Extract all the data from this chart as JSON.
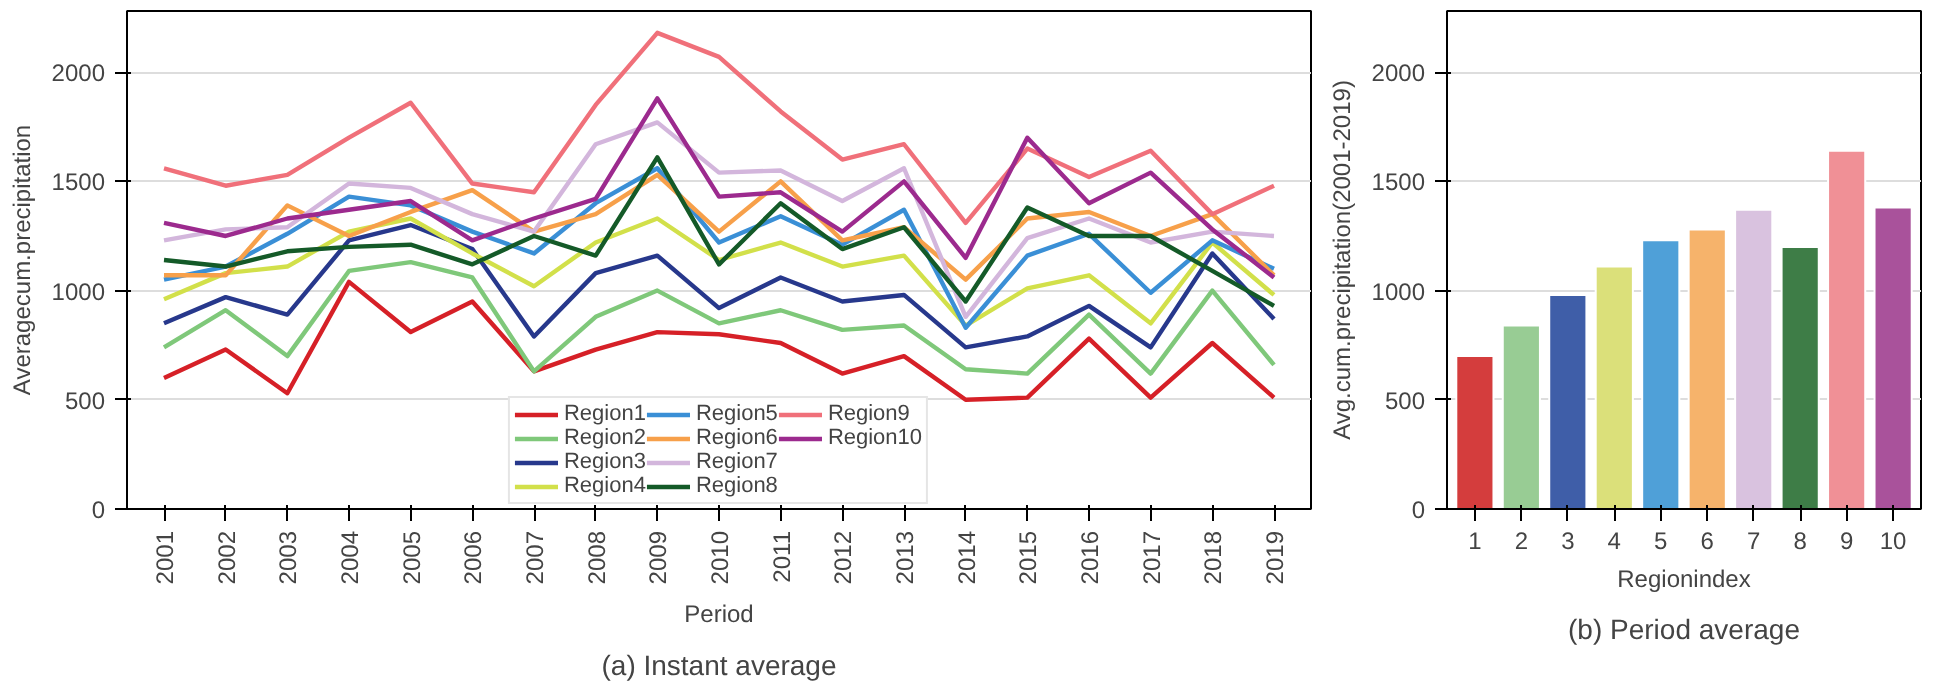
{
  "chart_data": [
    {
      "type": "line",
      "xlabel": "Period",
      "ylabel": "Averagecum.precipitation",
      "annotations": [
        "(a) Instant average"
      ],
      "categories": [
        "2001",
        "2002",
        "2003",
        "2004",
        "2005",
        "2006",
        "2007",
        "2008",
        "2009",
        "2010",
        "2011",
        "2012",
        "2013",
        "2014",
        "2015",
        "2016",
        "2017",
        "2018",
        "2019"
      ],
      "ylim": [
        0,
        2280
      ],
      "yticks": [
        0,
        500,
        1000,
        1500,
        2000
      ],
      "grid": "y",
      "legend": "bottom",
      "series": [
        {
          "name": "Region1",
          "color": "#d62027",
          "values": [
            600,
            730,
            530,
            1040,
            810,
            950,
            630,
            730,
            810,
            800,
            760,
            620,
            700,
            500,
            510,
            780,
            510,
            760,
            510
          ]
        },
        {
          "name": "Region2",
          "color": "#7fc87a",
          "values": [
            740,
            910,
            700,
            1090,
            1130,
            1060,
            630,
            880,
            1000,
            850,
            910,
            820,
            840,
            640,
            620,
            890,
            620,
            1000,
            660
          ]
        },
        {
          "name": "Region3",
          "color": "#27388c",
          "values": [
            850,
            970,
            890,
            1230,
            1300,
            1190,
            790,
            1080,
            1160,
            920,
            1060,
            950,
            980,
            740,
            790,
            930,
            740,
            1170,
            870
          ]
        },
        {
          "name": "Region4",
          "color": "#d2e04a",
          "values": [
            960,
            1080,
            1110,
            1270,
            1330,
            1170,
            1020,
            1220,
            1330,
            1140,
            1220,
            1110,
            1160,
            840,
            1010,
            1070,
            850,
            1220,
            980
          ]
        },
        {
          "name": "Region5",
          "color": "#3a8fd6",
          "values": [
            1050,
            1110,
            1260,
            1430,
            1390,
            1270,
            1170,
            1400,
            1560,
            1220,
            1340,
            1210,
            1370,
            830,
            1160,
            1260,
            990,
            1230,
            1100
          ]
        },
        {
          "name": "Region6",
          "color": "#f7a04a",
          "values": [
            1070,
            1070,
            1390,
            1250,
            1360,
            1460,
            1270,
            1350,
            1530,
            1270,
            1500,
            1230,
            1290,
            1050,
            1330,
            1360,
            1250,
            1350,
            1070
          ]
        },
        {
          "name": "Region7",
          "color": "#d3b6dc",
          "values": [
            1230,
            1280,
            1290,
            1490,
            1470,
            1350,
            1270,
            1670,
            1770,
            1540,
            1550,
            1410,
            1560,
            880,
            1240,
            1330,
            1220,
            1270,
            1250
          ]
        },
        {
          "name": "Region8",
          "color": "#145a28",
          "values": [
            1140,
            1110,
            1180,
            1200,
            1210,
            1120,
            1250,
            1160,
            1610,
            1120,
            1400,
            1190,
            1290,
            950,
            1380,
            1250,
            1250,
            1090,
            930
          ]
        },
        {
          "name": "Region9",
          "color": "#f0707a",
          "values": [
            1560,
            1480,
            1530,
            1700,
            1860,
            1490,
            1450,
            1850,
            2180,
            2070,
            1820,
            1600,
            1670,
            1310,
            1650,
            1520,
            1640,
            1350,
            1480
          ]
        },
        {
          "name": "Region10",
          "color": "#9c2a8e",
          "values": [
            1310,
            1250,
            1330,
            1370,
            1410,
            1230,
            1330,
            1420,
            1880,
            1430,
            1450,
            1270,
            1500,
            1150,
            1700,
            1400,
            1540,
            1280,
            1060
          ]
        }
      ]
    },
    {
      "type": "bar",
      "xlabel": "Regionindex",
      "ylabel": "Avg.cum.precipitation(2001-2019)",
      "annotations": [
        "(b) Period average"
      ],
      "categories": [
        "1",
        "2",
        "3",
        "4",
        "5",
        "6",
        "7",
        "8",
        "9",
        "10"
      ],
      "values": [
        700,
        840,
        980,
        1110,
        1230,
        1280,
        1370,
        1200,
        1640,
        1380
      ],
      "colors": [
        "#d43d3d",
        "#98cc94",
        "#3f5ea8",
        "#dbe07a",
        "#4fa0d8",
        "#f6b36b",
        "#d9c2df",
        "#3e7d47",
        "#f09096",
        "#a9529b"
      ],
      "ylim": [
        0,
        2280
      ],
      "yticks": [
        0,
        500,
        1000,
        1500,
        2000
      ],
      "grid": "y"
    }
  ]
}
